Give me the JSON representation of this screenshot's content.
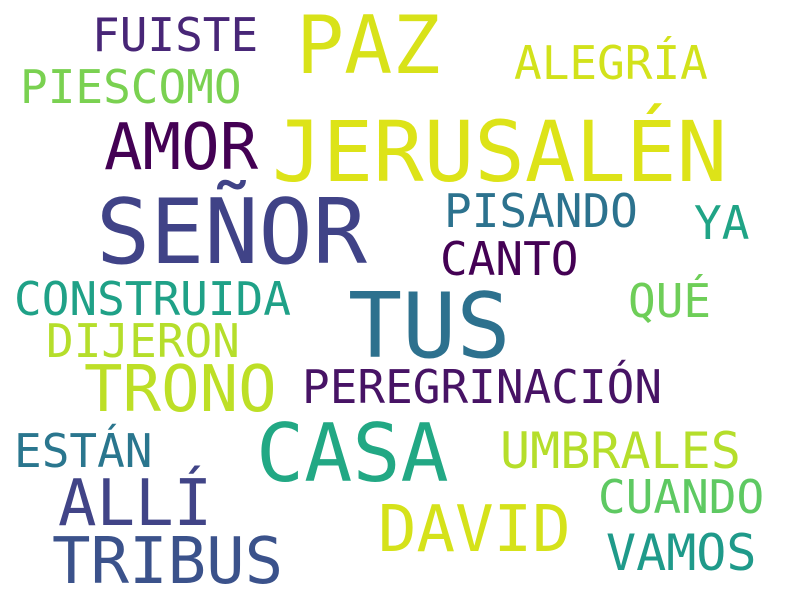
{
  "words": [
    {
      "text": "FUISTE",
      "color": "#482677"
    },
    {
      "text": "PAZ",
      "color": "#d8e219"
    },
    {
      "text": "ALEGRÍA",
      "color": "#d2e21b"
    },
    {
      "text": "PIESCOMO",
      "color": "#7ad151"
    },
    {
      "text": "AMOR",
      "color": "#440154"
    },
    {
      "text": "JERUSALÉN",
      "color": "#dde318"
    },
    {
      "text": "SEÑOR",
      "color": "#404387"
    },
    {
      "text": "PISANDO",
      "color": "#2c728e"
    },
    {
      "text": "YA",
      "color": "#20a486"
    },
    {
      "text": "CANTO",
      "color": "#440154"
    },
    {
      "text": "CONSTRUIDA",
      "color": "#1fa187"
    },
    {
      "text": "TUS",
      "color": "#2d718e"
    },
    {
      "text": "QUÉ",
      "color": "#6ece58"
    },
    {
      "text": "DIJERON",
      "color": "#b5de2b"
    },
    {
      "text": "TRONO",
      "color": "#bddf26"
    },
    {
      "text": "PEREGRINACIÓN",
      "color": "#471365"
    },
    {
      "text": "ESTÁN",
      "color": "#2a768e"
    },
    {
      "text": "CASA",
      "color": "#22a884"
    },
    {
      "text": "UMBRALES",
      "color": "#b5de2b"
    },
    {
      "text": "ALLÍ",
      "color": "#414487"
    },
    {
      "text": "CUANDO",
      "color": "#5ec962"
    },
    {
      "text": "DAVID",
      "color": "#d5e21a"
    },
    {
      "text": "TRIBUS",
      "color": "#3b528b"
    },
    {
      "text": "VAMOS",
      "color": "#1f9a8a"
    }
  ]
}
